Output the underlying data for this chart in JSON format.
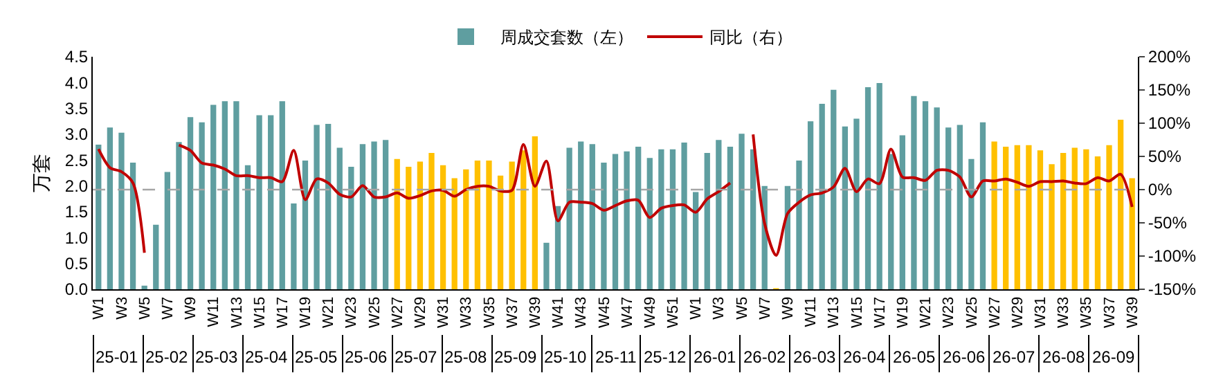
{
  "chart_data": {
    "type": "bar",
    "ylabel": "万套",
    "legend": "top",
    "grid": false,
    "categories": [
      "W1",
      null,
      "W3",
      null,
      "W5",
      null,
      "W7",
      null,
      "W9",
      null,
      "W11",
      null,
      "W13",
      null,
      "W15",
      null,
      "W17",
      null,
      "W19",
      null,
      "W21",
      null,
      "W23",
      null,
      "W25",
      null,
      "W27",
      null,
      "W29",
      null,
      "W31",
      null,
      "W33",
      null,
      "W35",
      null,
      "W37",
      null,
      "W39",
      null,
      "W41",
      null,
      "W43",
      null,
      "W45",
      null,
      "W47",
      null,
      "W49",
      null,
      "W51",
      null,
      "W1",
      null,
      "W3",
      null,
      "W5",
      null,
      "W7",
      null,
      "W9",
      null,
      "W11",
      null,
      "W13",
      null,
      "W15",
      null,
      "W17",
      null,
      "W19",
      null,
      "W21",
      null,
      "W23",
      null,
      "W25",
      null,
      "W27",
      null,
      "W29",
      null,
      "W31",
      null,
      "W33",
      null,
      "W35",
      null,
      "W37",
      null,
      "W39"
    ],
    "series": [
      {
        "name": "周成交套数（左）",
        "values": [
          2.8,
          3.13,
          3.03,
          2.45,
          0.07,
          1.25,
          2.27,
          2.85,
          3.33,
          3.23,
          3.57,
          3.64,
          3.64,
          2.4,
          3.37,
          3.37,
          3.64,
          1.66,
          2.49,
          3.18,
          3.2,
          2.74,
          2.37,
          2.81,
          2.86,
          2.89,
          2.52,
          2.37,
          2.47,
          2.64,
          2.4,
          2.15,
          2.32,
          2.49,
          2.49,
          2.2,
          2.47,
          2.69,
          2.96,
          0.9,
          1.61,
          2.74,
          2.86,
          2.81,
          2.45,
          2.62,
          2.67,
          2.76,
          2.54,
          2.71,
          2.71,
          2.84,
          1.88,
          2.64,
          2.89,
          2.76,
          3.01,
          2.71,
          2.0,
          0.02,
          2.0,
          2.49,
          3.25,
          3.59,
          3.86,
          3.15,
          3.3,
          3.91,
          3.99,
          2.62,
          2.98,
          3.74,
          3.64,
          3.52,
          3.13,
          3.18,
          2.52,
          3.23,
          2.86,
          2.76,
          2.79,
          2.79,
          2.69,
          2.42,
          2.64,
          2.74,
          2.71,
          2.57,
          2.79,
          3.28,
          2.15
        ],
        "colors": [
          "#5f9ea0",
          "#5f9ea0",
          "#5f9ea0",
          "#5f9ea0",
          "#5f9ea0",
          "#5f9ea0",
          "#5f9ea0",
          "#5f9ea0",
          "#5f9ea0",
          "#5f9ea0",
          "#5f9ea0",
          "#5f9ea0",
          "#5f9ea0",
          "#5f9ea0",
          "#5f9ea0",
          "#5f9ea0",
          "#5f9ea0",
          "#5f9ea0",
          "#5f9ea0",
          "#5f9ea0",
          "#5f9ea0",
          "#5f9ea0",
          "#5f9ea0",
          "#5f9ea0",
          "#5f9ea0",
          "#5f9ea0",
          "#ffc000",
          "#ffc000",
          "#ffc000",
          "#ffc000",
          "#ffc000",
          "#ffc000",
          "#ffc000",
          "#ffc000",
          "#ffc000",
          "#ffc000",
          "#ffc000",
          "#ffc000",
          "#ffc000",
          "#5f9ea0",
          "#5f9ea0",
          "#5f9ea0",
          "#5f9ea0",
          "#5f9ea0",
          "#5f9ea0",
          "#5f9ea0",
          "#5f9ea0",
          "#5f9ea0",
          "#5f9ea0",
          "#5f9ea0",
          "#5f9ea0",
          "#5f9ea0",
          "#5f9ea0",
          "#5f9ea0",
          "#5f9ea0",
          "#5f9ea0",
          "#5f9ea0",
          "#5f9ea0",
          "#5f9ea0",
          "#ffc000",
          "#5f9ea0",
          "#5f9ea0",
          "#5f9ea0",
          "#5f9ea0",
          "#5f9ea0",
          "#5f9ea0",
          "#5f9ea0",
          "#5f9ea0",
          "#5f9ea0",
          "#5f9ea0",
          "#5f9ea0",
          "#5f9ea0",
          "#5f9ea0",
          "#5f9ea0",
          "#5f9ea0",
          "#5f9ea0",
          "#5f9ea0",
          "#5f9ea0",
          "#ffc000",
          "#ffc000",
          "#ffc000",
          "#ffc000",
          "#ffc000",
          "#ffc000",
          "#ffc000",
          "#ffc000",
          "#ffc000",
          "#ffc000",
          "#ffc000",
          "#ffc000",
          "#ffc000"
        ]
      },
      {
        "name": "同比（右）",
        "type": "line",
        "axis": "y2",
        "color": "#c00000",
        "values": [
          61,
          33,
          27,
          10,
          -95,
          null,
          null,
          67,
          59,
          40,
          37,
          31,
          21,
          21,
          18,
          18,
          12,
          59,
          -15,
          16,
          10,
          -7,
          -11,
          6,
          -11,
          -11,
          -5,
          -13,
          -9,
          -2,
          -1,
          -10,
          0,
          5,
          5,
          -2,
          -1,
          68,
          5,
          43,
          -47,
          -19,
          -19,
          -21,
          -31,
          -24,
          -17,
          -16,
          -42,
          -28,
          -24,
          -23,
          -34,
          -14,
          -3,
          10,
          null,
          83,
          -51,
          -99,
          -36,
          -19,
          -8,
          -5,
          4,
          32,
          -3,
          16,
          9,
          61,
          19,
          18,
          14,
          29,
          29,
          19,
          -11,
          13,
          13,
          16,
          11,
          5,
          12,
          12,
          13,
          10,
          9,
          18,
          13,
          23,
          -26
        ]
      }
    ],
    "ylim": [
      0,
      4.5
    ],
    "yticks": [
      {
        "value": 0,
        "label": "0.0"
      },
      0.5,
      {
        "value": 1,
        "label": "1.0"
      },
      1.5,
      {
        "value": 2,
        "label": "2.0"
      },
      2.5,
      {
        "value": 3,
        "label": "3.0"
      },
      3.5,
      {
        "value": 4,
        "label": "4.0"
      },
      4.5
    ],
    "y2lim": [
      -150,
      200
    ],
    "y2ticks": [
      {
        "value": -150,
        "label": "-150%"
      },
      {
        "value": -100,
        "label": "-100%"
      },
      {
        "value": -50,
        "label": "-50%"
      },
      {
        "value": 0,
        "label": "0%"
      },
      {
        "value": 50,
        "label": "50%"
      },
      {
        "value": 100,
        "label": "100%"
      },
      {
        "value": 150,
        "label": "150%"
      },
      {
        "value": 200,
        "label": "200%"
      }
    ],
    "ref_lines": [
      {
        "axis": "y2",
        "value": 0,
        "color": "#a6a6a6",
        "line_style": "dashed"
      }
    ],
    "annotations": [
      "25-01",
      "25-02",
      "25-03",
      "25-04",
      "25-05",
      "25-06",
      "25-07",
      "25-08",
      "25-09",
      "25-10",
      "25-11",
      "25-12",
      "26-01",
      "26-02",
      "26-03",
      "26-04",
      "26-05",
      "26-06",
      "26-07",
      "26-08",
      "26-09"
    ]
  }
}
